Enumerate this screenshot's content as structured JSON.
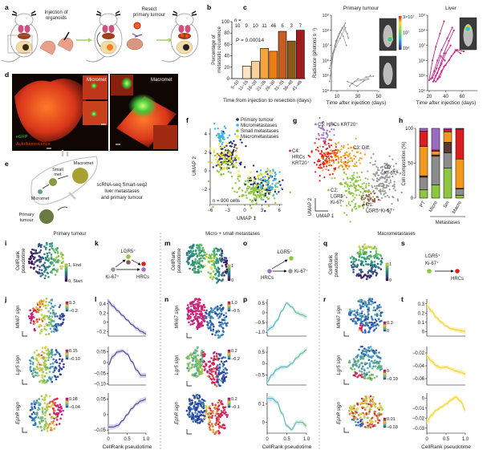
{
  "panel_letters": [
    "a",
    "b",
    "c",
    "d",
    "e",
    "f",
    "g",
    "h",
    "i",
    "j",
    "k",
    "l",
    "m",
    "n",
    "o",
    "p",
    "q",
    "r",
    "s",
    "t"
  ],
  "a": {
    "step1_line1": "Injection of",
    "step1_line2": "organoids",
    "step2_line1": "Resect",
    "step2_line2": "primary tumour"
  },
  "c_colorbar": [
    "3×10⁷",
    "10⁷",
    "10⁶"
  ],
  "d": {
    "micromet": "Micromet",
    "macromet": "Macromet",
    "egfp": "eGFP",
    "autofluorescence": "Autofluorescence",
    "colors": {
      "egfp": "#3fc43a",
      "autofluorescence": "#e03a1a"
    }
  },
  "e": {
    "macromet": "Macromet",
    "small_met_1": "Small",
    "small_met_2": "met",
    "micromet": "Micromet",
    "primary_1": "Primary",
    "primary_2": "tumour",
    "desc": [
      "scRNA-seq Smart-seq2",
      "liver metastases",
      "and primary tumour"
    ]
  },
  "rows": {
    "primary": "Primary tumour",
    "micro_small": "Micro + small metastases",
    "macro": "Macrometastases"
  },
  "pseudotime_label": [
    "CellRank",
    "pseudotime"
  ],
  "i": {
    "cb_max": "1, End",
    "cb_min": "0, Start"
  },
  "m": {
    "cb_max": "1",
    "cb_min": "0"
  },
  "q": {
    "cb_max": "1",
    "cb_min": "0"
  },
  "k": {
    "lgr5": "LGR5⁺",
    "ki67": "Ki-67⁺",
    "hrcs": "HRCs"
  },
  "o": {
    "lgr5": "LGR5⁺",
    "ki67": "Ki-67⁺",
    "hrcs": "HRCs"
  },
  "s": {
    "lgr5": "LGR5⁺",
    "ki67": "Ki-67⁺",
    "hrcs": "HRCs"
  },
  "lineage_colors": {
    "ki67": "#9a9a9a",
    "lgr5": "#8dc63f",
    "lgr5_ki67": "#8b5a4a",
    "hrcs_krt20": "#e02020",
    "hrcs": "#a070c0"
  },
  "signatures": {
    "mki67": "Mki67 sign",
    "lgr5": "Lgr5 sign",
    "ephr": "EphR sign"
  },
  "colorbars": {
    "j1": [
      "0.3",
      "−0.2"
    ],
    "j2": [
      "0.15",
      "−0.10"
    ],
    "j3": [
      "0.08",
      "−0.04"
    ],
    "n1": [
      "1.0",
      "−0.5"
    ],
    "n2": [
      "0.2",
      "−0.2"
    ],
    "n3": [
      "0.2",
      "−0.1"
    ],
    "r1": [
      "0.3",
      "0"
    ],
    "r2": [
      "0",
      "−0.10"
    ],
    "r3": [
      "0.01",
      "−0.03"
    ]
  },
  "pseudotime_axis": {
    "xlabel": "CellRank pseudotime",
    "xticks": [
      "0",
      "0.5",
      "1.0"
    ]
  },
  "chart_data": [
    {
      "id": "b",
      "type": "bar",
      "categories": [
        "5–10",
        "11–15",
        "16–20",
        "21–25",
        "26–30",
        "31–35",
        "36–40",
        "41–45"
      ],
      "values": [
        0,
        22,
        30,
        53,
        48,
        83,
        66,
        85
      ],
      "n_label": "n =",
      "n": [
        "10",
        "9",
        "10",
        "11",
        "46",
        "6",
        "3",
        "7"
      ],
      "annotation": "P = 0.00014",
      "xlabel": "Time from injection to resection (days)",
      "ylabel": [
        "Percentage of",
        "metastatic recurrence"
      ],
      "ylim": [
        0,
        100
      ],
      "yticks": [
        "0",
        "20",
        "40",
        "60",
        "80",
        "100"
      ],
      "colors": [
        "#ffffff",
        "#fde4c4",
        "#fbd19a",
        "#f6a33c",
        "#ef7e12",
        "#c65c1e",
        "#8e5a17",
        "#a01c1c"
      ]
    },
    {
      "id": "c-primary",
      "type": "line",
      "title": "Primary tumour",
      "xlabel": "Time after injection (days)",
      "ylabel": "Radiance (photons s⁻¹)",
      "yscale": "log",
      "ylim": [
        10000,
        1000000000
      ],
      "yticks": [
        "10⁹",
        "10⁸",
        "10⁷",
        "10⁶",
        "10⁵",
        "10⁴"
      ],
      "xticks": [
        "10",
        "30",
        "50"
      ],
      "color": "#8a8a8a",
      "series": [
        {
          "x": [
            3,
            6,
            10,
            14,
            18
          ],
          "y": [
            40000,
            3000000,
            20000000,
            100000000,
            300000000
          ]
        },
        {
          "x": [
            4,
            7,
            11,
            15,
            20
          ],
          "y": [
            100000,
            5000000,
            40000000,
            150000000,
            60000000
          ]
        },
        {
          "x": [
            3,
            8,
            12,
            17,
            21
          ],
          "y": [
            300000,
            10000000,
            60000000,
            200000000,
            30000000
          ]
        },
        {
          "x": [
            5,
            9,
            13,
            16,
            19
          ],
          "y": [
            1000000,
            20000000,
            80000000,
            40000000,
            10000000
          ]
        },
        {
          "x": [
            4,
            6,
            9,
            13,
            18
          ],
          "y": [
            200000,
            2000000,
            8000000,
            30000000,
            150000000
          ]
        },
        {
          "x": [
            20,
            25,
            30,
            36,
            42
          ],
          "y": [
            40000,
            30000,
            60000,
            50000,
            100000
          ]
        },
        {
          "x": [
            22,
            27,
            33,
            38,
            45
          ],
          "y": [
            20000,
            40000,
            50000,
            80000,
            90000
          ]
        },
        {
          "x": [
            24,
            29,
            35,
            40
          ],
          "y": [
            30000,
            20000,
            40000,
            60000
          ]
        }
      ]
    },
    {
      "id": "c-liver",
      "type": "line",
      "title": "Liver",
      "xlabel": "Time after injection (days)",
      "ylabel": "",
      "yscale": "log",
      "ylim": [
        10000,
        1000000000
      ],
      "yticks": [
        "10⁹",
        "10⁸",
        "10⁷",
        "10⁶",
        "10⁵",
        "10⁴"
      ],
      "xticks": [
        "20",
        "40",
        "60"
      ],
      "color": "#c0288a",
      "series": [
        {
          "x": [
            20,
            24,
            28,
            33,
            38
          ],
          "y": [
            50000,
            1000000,
            8000000,
            60000000,
            400000000
          ]
        },
        {
          "x": [
            22,
            26,
            30,
            35,
            42,
            48
          ],
          "y": [
            60000,
            200000,
            1000000,
            5000000,
            30000000,
            150000000
          ]
        },
        {
          "x": [
            25,
            28,
            32,
            38,
            44,
            50
          ],
          "y": [
            40000,
            100000,
            300000,
            3000000,
            20000000,
            100000000
          ]
        },
        {
          "x": [
            26,
            30,
            35,
            40,
            46
          ],
          "y": [
            50000,
            150000,
            600000,
            3000000,
            10000000
          ]
        },
        {
          "x": [
            28,
            33,
            38,
            44,
            52,
            58
          ],
          "y": [
            40000,
            80000,
            400000,
            1000000,
            5000000,
            3000000
          ]
        },
        {
          "x": [
            30,
            35,
            40,
            47,
            54,
            62
          ],
          "y": [
            60000,
            200000,
            500000,
            2000000,
            5000000,
            4000000
          ]
        },
        {
          "x": [
            24,
            29,
            34,
            39
          ],
          "y": [
            70000,
            300000,
            2000000,
            1000000
          ]
        }
      ]
    },
    {
      "id": "f",
      "type": "scatter",
      "xlabel": "UMAP 1",
      "ylabel": "UMAP 2",
      "xticks": [
        "−6",
        "−3",
        "0",
        "3",
        "6"
      ],
      "yticks": [
        "4",
        "2",
        "0",
        "−2"
      ],
      "annotation": "n = 900 cells",
      "legend_position": "top",
      "legend": [
        {
          "name": "Primary tumour",
          "color": "#2b2a6e"
        },
        {
          "name": "Micrometastases",
          "color": "#3fb3e8"
        },
        {
          "name": "Small metastases",
          "color": "#8dc63f"
        },
        {
          "name": "Macrometastases",
          "color": "#f5e02a"
        }
      ]
    },
    {
      "id": "g",
      "type": "scatter",
      "xlabel": "UMAP 1",
      "ylabel": "UMAP 2",
      "clusters": [
        {
          "label": [
            "C5: HRCs KRT20⁺"
          ],
          "color": "#a070c0"
        },
        {
          "label": [
            "C4:",
            "HRCs",
            "KRT20⁺"
          ],
          "color": "#e02020"
        },
        {
          "label": [
            "C3: Diff."
          ],
          "color": "#f39a1e"
        },
        {
          "label": [
            "C0:",
            "Ki-67⁺"
          ],
          "color": "#9a9a9a"
        },
        {
          "label": [
            "C2:",
            "LGR5⁺",
            "Ki-67⁺"
          ],
          "color": "#8dc63f"
        },
        {
          "label": [
            "C1:",
            "LGR5⁺Ki-67⁺"
          ],
          "color": "#8b5a4a"
        }
      ]
    },
    {
      "id": "h",
      "type": "bar",
      "stacked": true,
      "categories": [
        "PT",
        "Micro",
        "Sm",
        "Macro"
      ],
      "group_label": "Metastases",
      "ylabel": "Cell composition (%)",
      "ylim": [
        0,
        100
      ],
      "yticks": [
        "0",
        "50",
        "100"
      ],
      "series": [
        {
          "cluster": "C2",
          "color": "#8dc63f",
          "values": [
            12,
            19,
            43,
            4
          ]
        },
        {
          "cluster": "C0",
          "color": "#8c8c8c",
          "values": [
            18,
            41,
            22,
            9
          ]
        },
        {
          "cluster": "C1",
          "color": "#5a3a30",
          "values": [
            2,
            2,
            15,
            1
          ]
        },
        {
          "cluster": "C3",
          "color": "#f39a1e",
          "values": [
            42,
            5,
            15,
            42
          ]
        },
        {
          "cluster": "C4",
          "color": "#d81e1e",
          "values": [
            22,
            2,
            3,
            43
          ]
        },
        {
          "cluster": "C5",
          "color": "#9a6cc0",
          "values": [
            4,
            31,
            2,
            1
          ]
        }
      ]
    },
    {
      "id": "l",
      "type": "line",
      "x": [
        0,
        0.125,
        0.25,
        0.375,
        0.5,
        0.625,
        0.75,
        0.875,
        1.0
      ],
      "color": "#4a4a8c",
      "band_color": "#cdc9e6",
      "panels": [
        {
          "signature": "Mki67",
          "ylim": [
            -0.3,
            0.5
          ],
          "yticks": [
            "0.4",
            "0.2",
            "0",
            "−0.2"
          ],
          "ytick_values": [
            0.4,
            0.2,
            0,
            -0.2
          ],
          "y": [
            0.45,
            0.35,
            0.25,
            0.15,
            0.05,
            -0.05,
            -0.13,
            -0.2,
            -0.25
          ]
        },
        {
          "signature": "Lgr5",
          "ylim": [
            -0.105,
            0.075
          ],
          "yticks": [
            "0.05",
            "0",
            "−0.05",
            "−0.10"
          ],
          "ytick_values": [
            0.05,
            0,
            -0.05,
            -0.1
          ],
          "y": [
            -0.01,
            0.03,
            0.05,
            0.055,
            0.04,
            0.005,
            -0.035,
            -0.06,
            -0.06
          ]
        },
        {
          "signature": "EphR",
          "ylim": [
            -0.06,
            0.07
          ],
          "yticks": [
            "0.05",
            "0",
            "−0.05"
          ],
          "ytick_values": [
            0.05,
            0,
            -0.05
          ],
          "y": [
            -0.04,
            -0.04,
            -0.035,
            -0.02,
            0.0,
            0.02,
            0.035,
            0.045,
            0.05
          ]
        }
      ]
    },
    {
      "id": "p",
      "type": "line",
      "x": [
        0,
        0.125,
        0.25,
        0.375,
        0.5,
        0.625,
        0.75,
        0.875,
        1.0
      ],
      "color": "#4fb2c8",
      "color_end": "#7cc24a",
      "band_color": "#c6e6ee",
      "panels": [
        {
          "signature": "Mki67",
          "ylim": [
            -1.2,
            0.7
          ],
          "yticks": [
            "0.5",
            "0",
            "−0.5",
            "−1.0"
          ],
          "ytick_values": [
            0.5,
            0,
            -0.5,
            -1.0
          ],
          "y": [
            -0.9,
            -0.75,
            -0.4,
            0.1,
            0.5,
            0.3,
            0.0,
            -0.1,
            -0.2
          ]
        },
        {
          "signature": "Lgr5",
          "ylim": [
            -0.95,
            0.75
          ],
          "yticks": [
            "0.5",
            "0",
            "−0.5"
          ],
          "ytick_values": [
            0.5,
            0,
            -0.5
          ],
          "y": [
            -0.8,
            -0.5,
            -0.25,
            -0.15,
            -0.15,
            0.0,
            0.25,
            0.45,
            0.6
          ]
        },
        {
          "signature": "EphR",
          "ylim": [
            -0.06,
            0.16
          ],
          "yticks": [
            "0.1",
            "0"
          ],
          "ytick_values": [
            0.1,
            0
          ],
          "y": [
            0.13,
            0.13,
            0.11,
            0.05,
            -0.02,
            -0.04,
            0.0,
            0.0,
            -0.02
          ]
        }
      ]
    },
    {
      "id": "t",
      "type": "line",
      "x": [
        0,
        0.125,
        0.25,
        0.375,
        0.5,
        0.625,
        0.75,
        0.875,
        1.0
      ],
      "color": "#f2d230",
      "band_color": "#fbefa8",
      "panels": [
        {
          "signature": "Mki67",
          "ylim": [
            -0.05,
            0.35
          ],
          "yticks": [
            "0.3",
            "0.2",
            "0.1",
            "0"
          ],
          "ytick_values": [
            0.3,
            0.2,
            0.1,
            0
          ],
          "y": [
            0.28,
            0.22,
            0.15,
            0.1,
            0.06,
            0.03,
            0.02,
            0.01,
            0.0
          ]
        },
        {
          "signature": "Lgr5",
          "ylim": [
            -0.07,
            -0.01
          ],
          "yticks": [
            "−0.02",
            "−0.04",
            "−0.06"
          ],
          "ytick_values": [
            -0.02,
            -0.04,
            -0.06
          ],
          "y": [
            -0.025,
            -0.033,
            -0.04,
            -0.043,
            -0.042,
            -0.045,
            -0.048,
            -0.05,
            -0.053
          ]
        },
        {
          "signature": "EphR",
          "ylim": [
            -0.035,
            0.005
          ],
          "yticks": [
            "0",
            "−0.01",
            "−0.02",
            "−0.03"
          ],
          "ytick_values": [
            0,
            -0.01,
            -0.02,
            -0.03
          ],
          "y": [
            -0.023,
            -0.017,
            -0.012,
            -0.009,
            -0.006,
            -0.002,
            0.001,
            -0.003,
            -0.012
          ]
        }
      ]
    }
  ]
}
